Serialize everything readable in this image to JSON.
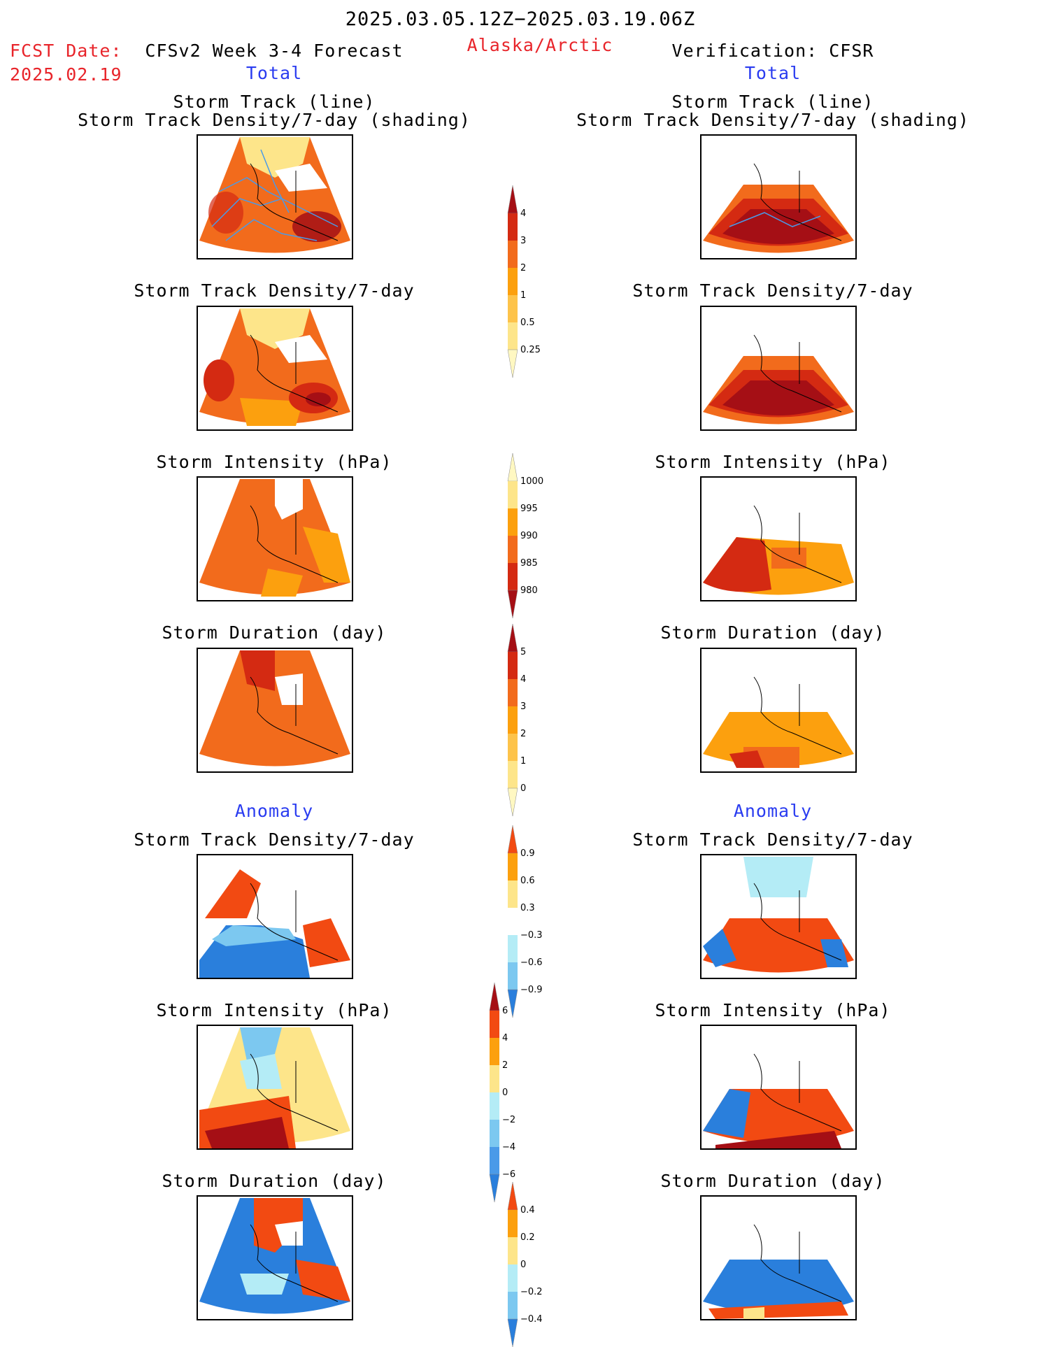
{
  "header": {
    "date_range": "2025.03.05.12Z−2025.03.19.06Z",
    "fcst_label": "FCST Date:",
    "fcst_date": "2025.02.19",
    "model_title": "CFSv2 Week 3-4 Forecast",
    "region": "Alaska/Arctic",
    "verification": "Verification: CFSR"
  },
  "left_column": {
    "total_label": "Total",
    "anomaly_label": "Anomaly"
  },
  "right_column": {
    "total_label": "Total",
    "anomaly_label": "Anomaly"
  },
  "panel_titles": {
    "track_line": "Storm Track (line)",
    "track_shading": "Storm Track Density/7-day (shading)",
    "density": "Storm Track Density/7-day",
    "intensity": "Storm Intensity (hPa)",
    "duration": "Storm Duration (day)"
  },
  "colorbars": {
    "density": {
      "labels": [
        "4",
        "3",
        "2",
        "1",
        "0.5",
        "0.25"
      ],
      "colors": [
        "#a50f15",
        "#d42a12",
        "#f26b1c",
        "#fca00e",
        "#fdc34a",
        "#fde58a",
        "#fff8c2"
      ]
    },
    "intensity": {
      "labels": [
        "1000",
        "995",
        "990",
        "985",
        "980"
      ],
      "colors": [
        "#fff8c2",
        "#fde58a",
        "#fca00e",
        "#f26b1c",
        "#d42a12",
        "#a50f15"
      ]
    },
    "duration": {
      "labels": [
        "5",
        "4",
        "3",
        "2",
        "1",
        "0"
      ],
      "colors": [
        "#a50f15",
        "#d42a12",
        "#f26b1c",
        "#fca00e",
        "#fdc34a",
        "#fde58a",
        "#fff8c2"
      ]
    },
    "anom_density": {
      "labels": [
        "0.9",
        "0.6",
        "0.3",
        "−0.3",
        "−0.6",
        "−0.9"
      ],
      "colors": [
        "#f24a12",
        "#fca00e",
        "#fde58a",
        "#ffffff",
        "#b4ecf6",
        "#7cc8f0",
        "#2a7fdc"
      ]
    },
    "anom_intensity": {
      "labels": [
        "6",
        "4",
        "2",
        "0",
        "−2",
        "−4",
        "−6"
      ],
      "colors": [
        "#a50f15",
        "#f24a12",
        "#fca00e",
        "#fde58a",
        "#b4ecf6",
        "#7cc8f0",
        "#4a9ae8",
        "#2a7fdc"
      ]
    },
    "anom_duration": {
      "labels": [
        "0.4",
        "0.2",
        "0",
        "−0.2",
        "−0.4"
      ],
      "colors": [
        "#f24a12",
        "#fca00e",
        "#fde58a",
        "#b4ecf6",
        "#7cc8f0",
        "#2a7fdc"
      ]
    }
  },
  "map_colors": {
    "land_line": "#000000",
    "track_line": "#4a9ae8"
  }
}
